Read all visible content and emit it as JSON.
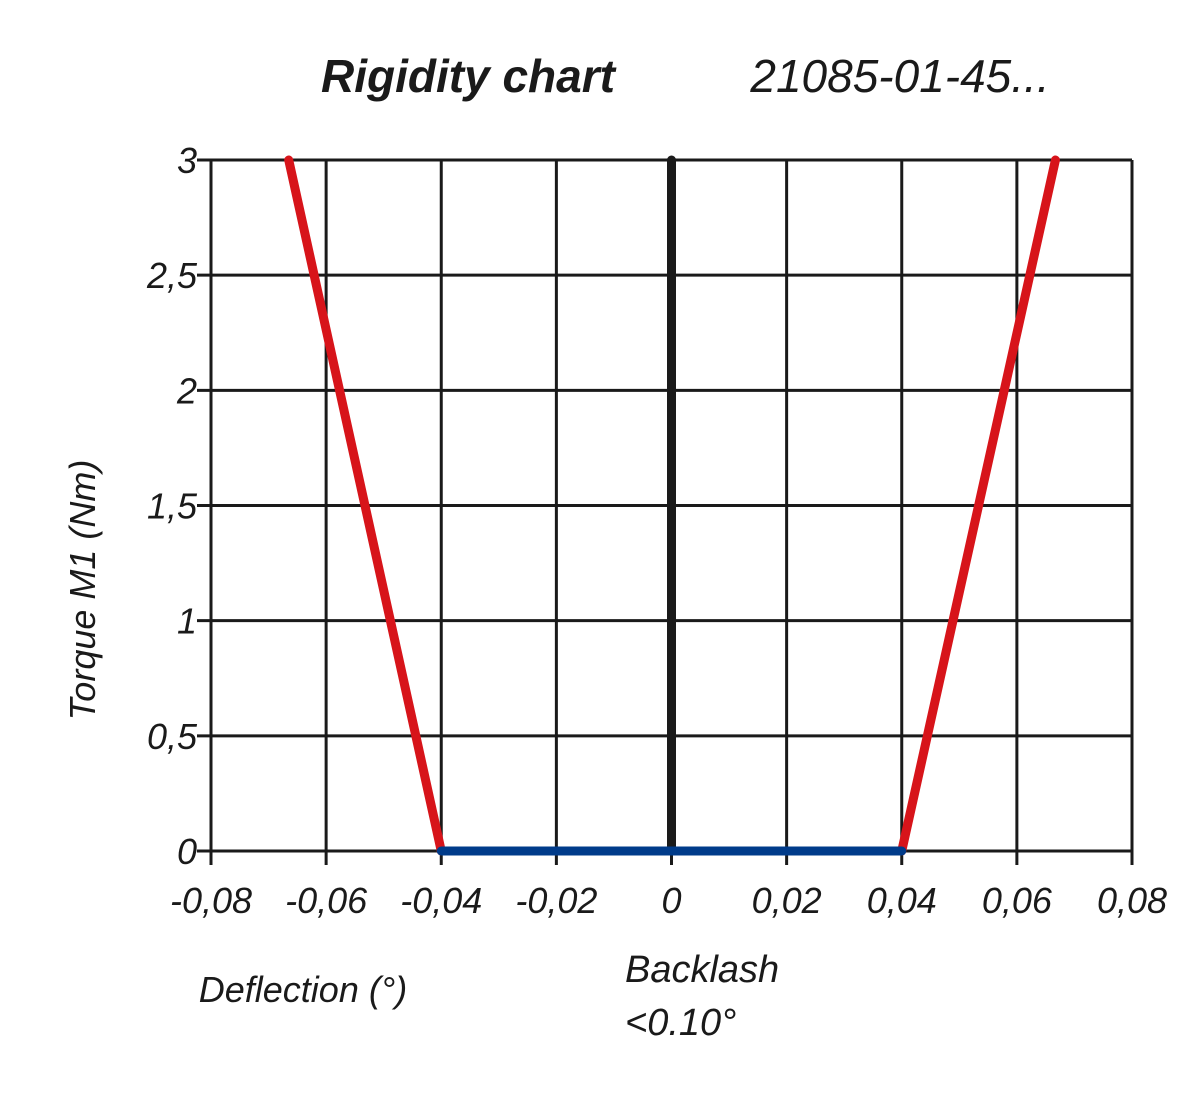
{
  "chart_data": {
    "type": "line",
    "title": "Rigidity chart",
    "subtitle": "21085-01-45...",
    "xlabel": "Deflection (°)",
    "ylabel": "Torque M1 (Nm)",
    "xlim": [
      -0.08,
      0.08
    ],
    "ylim": [
      0,
      3
    ],
    "grid": true,
    "x_ticks": [
      -0.08,
      -0.06,
      -0.04,
      -0.02,
      0,
      0.02,
      0.04,
      0.06,
      0.08
    ],
    "x_tick_labels": [
      "-0,08",
      "-0,06",
      "-0,04",
      "-0,02",
      "0",
      "0,02",
      "0,04",
      "0,06",
      "0,08"
    ],
    "y_ticks": [
      0,
      0.5,
      1,
      1.5,
      2,
      2.5,
      3
    ],
    "y_tick_labels": [
      "0",
      "0,5",
      "1",
      "1,5",
      "2",
      "2,5",
      "3"
    ],
    "series": [
      {
        "color": "#d7141a",
        "points": [
          {
            "x": -0.0665,
            "y": 3
          },
          {
            "x": -0.04,
            "y": 0
          }
        ]
      },
      {
        "color": "#d7141a",
        "points": [
          {
            "x": 0.04,
            "y": 0
          },
          {
            "x": 0.0667,
            "y": 3
          }
        ]
      },
      {
        "color": "#003b8a",
        "points": [
          {
            "x": -0.04,
            "y": 0
          },
          {
            "x": 0.04,
            "y": 0
          }
        ]
      }
    ],
    "annotations": [
      {
        "lines": [
          "Backlash",
          "<0.10°"
        ]
      }
    ]
  }
}
